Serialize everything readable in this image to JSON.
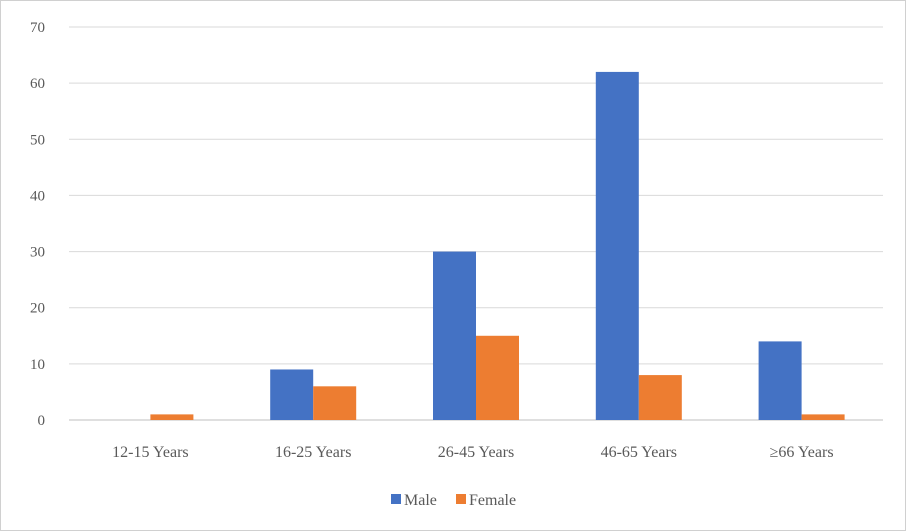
{
  "chart_data": {
    "type": "bar",
    "title": "",
    "xlabel": "",
    "ylabel": "",
    "categories": [
      "12-15 Years",
      "16-25 Years",
      "26-45 Years",
      "46-65 Years",
      "≥66 Years"
    ],
    "series": [
      {
        "name": "Male",
        "values": [
          0,
          9,
          30,
          62,
          14
        ],
        "color": "#4472c4"
      },
      {
        "name": "Female",
        "values": [
          1,
          6,
          15,
          8,
          1
        ],
        "color": "#ed7d31"
      }
    ],
    "ylim": [
      0,
      70
    ],
    "yticks": [
      "0",
      "10",
      "20",
      "30",
      "40",
      "50",
      "60",
      "70"
    ],
    "grid": true,
    "legend_position": "bottom",
    "colors": {
      "gridline": "#d9d9d9",
      "text": "#595959"
    }
  }
}
